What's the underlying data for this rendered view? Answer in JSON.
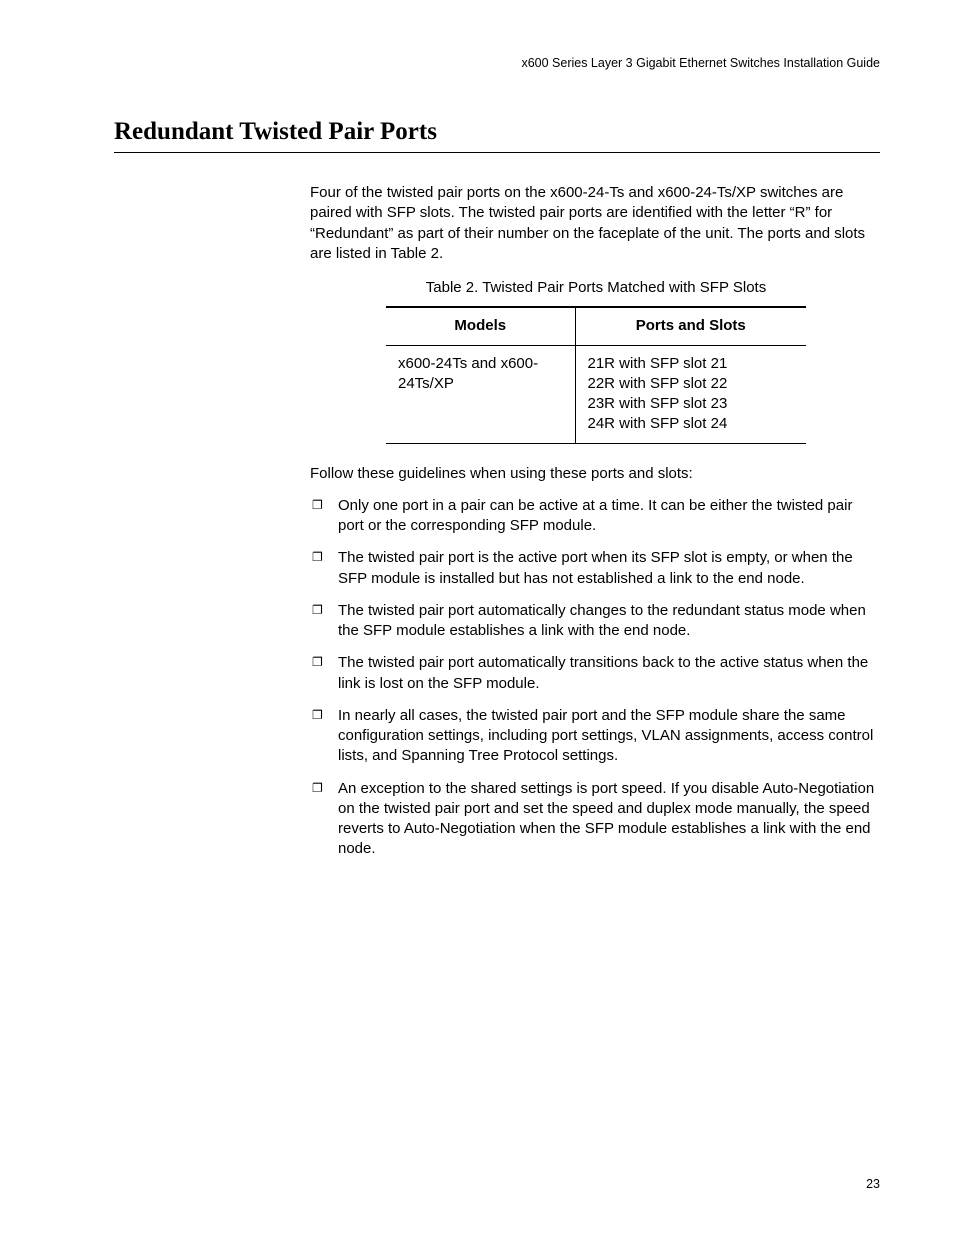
{
  "header": {
    "running": "x600 Series Layer 3 Gigabit Ethernet Switches Installation Guide"
  },
  "section": {
    "title": "Redundant Twisted Pair Ports",
    "intro": "Four of the twisted pair ports on the x600-24-Ts and x600-24-Ts/XP switches are paired with SFP slots. The twisted pair ports are identified with the letter “R” for “Redundant” as part of their number on the faceplate of the unit. The ports and slots are listed in Table 2."
  },
  "table": {
    "caption": "Table 2. Twisted Pair Ports Matched with SFP Slots",
    "columns": [
      "Models",
      "Ports and Slots"
    ],
    "rows": [
      {
        "models": "x600-24Ts and x600-24Ts/XP",
        "ports": [
          "21R with SFP slot 21",
          "22R with SFP slot 22",
          "23R with SFP slot 23",
          "24R with SFP slot 24"
        ]
      }
    ]
  },
  "guidelines": {
    "lead": "Follow these guidelines when using these ports and slots:",
    "items": [
      "Only one port in a pair can be active at a time. It can be either the twisted pair port or the corresponding SFP module.",
      "The twisted pair port is the active port when its SFP slot is empty, or when the SFP module is installed but has not established a link to the end node.",
      "The twisted pair port automatically changes to the redundant status mode when the SFP module establishes a link with the end node.",
      "The twisted pair port automatically transitions back to the active status when the link is lost on the SFP module.",
      "In nearly all cases, the twisted pair port and the SFP module share the same configuration settings, including port settings, VLAN assignments, access control lists, and Spanning Tree Protocol settings.",
      "An exception to the shared settings is port speed. If you disable Auto-Negotiation on the twisted pair port and set the speed and duplex mode manually, the speed reverts to Auto-Negotiation when the SFP module establishes a link with the end node."
    ]
  },
  "footer": {
    "page_number": "23"
  }
}
